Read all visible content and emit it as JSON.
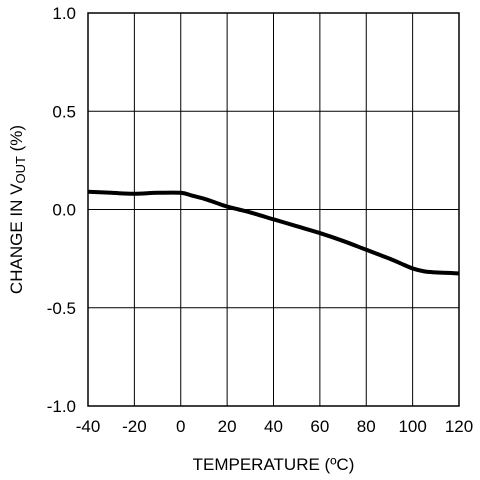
{
  "chart_data": {
    "type": "line",
    "title": "",
    "xlabel": "TEMPERATURE (ºC)",
    "ylabel": {
      "prefix": "CHANGE IN V",
      "subscript": "OUT",
      "suffix": " (%)"
    },
    "xlim": [
      -40,
      120
    ],
    "ylim": [
      -1.0,
      1.0
    ],
    "x_ticks": [
      -40,
      -20,
      0,
      20,
      40,
      60,
      80,
      100,
      120
    ],
    "x_tick_labels": [
      "-40",
      "-20",
      "0",
      "20",
      "40",
      "60",
      "80",
      "100",
      "120"
    ],
    "y_ticks": [
      1.0,
      0.5,
      0.0,
      -0.5,
      -1.0
    ],
    "y_tick_labels": [
      "1.0",
      "0.5",
      "0.0",
      "-0.5",
      "-1.0"
    ],
    "grid": true,
    "series": [
      {
        "x": [
          -40,
          -30,
          -20,
          -10,
          0,
          5,
          10,
          15,
          20,
          25,
          30,
          40,
          50,
          60,
          70,
          80,
          90,
          95,
          100,
          105,
          110,
          120
        ],
        "y": [
          0.09,
          0.085,
          0.08,
          0.085,
          0.085,
          0.07,
          0.055,
          0.035,
          0.015,
          0.0,
          -0.015,
          -0.05,
          -0.085,
          -0.12,
          -0.16,
          -0.205,
          -0.25,
          -0.275,
          -0.3,
          -0.315,
          -0.32,
          -0.325
        ],
        "color": "#000000"
      }
    ]
  }
}
